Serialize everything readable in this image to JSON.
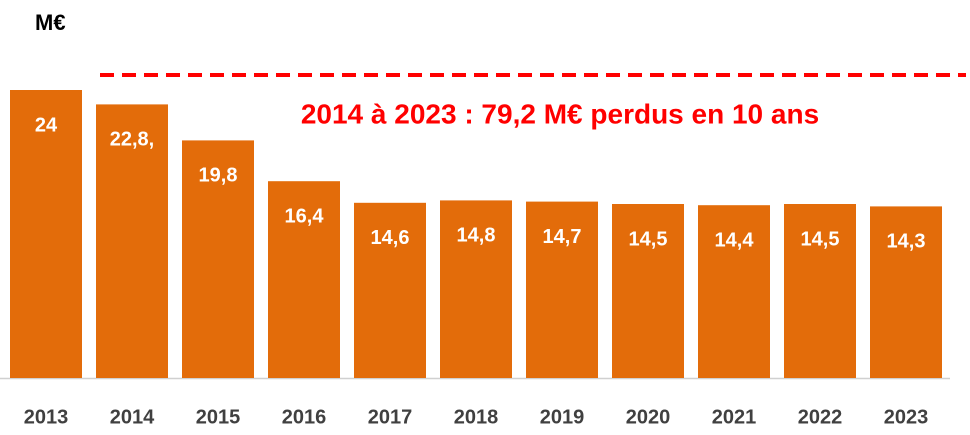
{
  "chart_data": {
    "type": "bar",
    "unit_label": "M€",
    "annotation": "2014 à 2023 : 79,2 M€ perdus en 10 ans",
    "categories": [
      "2013",
      "2014",
      "2015",
      "2016",
      "2017",
      "2018",
      "2019",
      "2020",
      "2021",
      "2022",
      "2023"
    ],
    "values": [
      24,
      22.8,
      19.8,
      16.4,
      14.6,
      14.8,
      14.7,
      14.5,
      14.4,
      14.5,
      14.3
    ],
    "value_labels": [
      "24",
      "22,8,",
      "19,8",
      "16,4",
      "14,6",
      "14,8",
      "14,7",
      "14,5",
      "14,4",
      "14,5",
      "14,3"
    ],
    "color": "#e36c0a",
    "annotation_color": "#ff0000",
    "ylim": [
      0,
      24
    ]
  }
}
